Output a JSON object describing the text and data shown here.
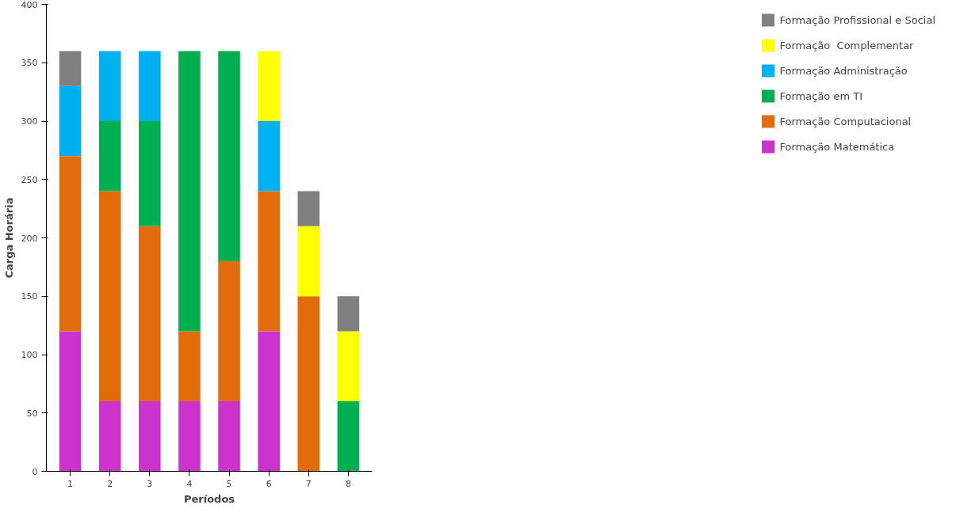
{
  "chart_data": {
    "type": "bar",
    "stacked": true,
    "xlabel": "Períodos",
    "ylabel": "Carga Horária",
    "categories": [
      "1",
      "2",
      "3",
      "4",
      "5",
      "6",
      "7",
      "8"
    ],
    "series": [
      {
        "name": "Formação Matemática",
        "color": "#cc33cc",
        "values": [
          120,
          60,
          60,
          60,
          60,
          120,
          0,
          0
        ]
      },
      {
        "name": "Formação Computacional",
        "color": "#e36c0a",
        "values": [
          150,
          180,
          150,
          60,
          120,
          120,
          150,
          0
        ]
      },
      {
        "name": "Formação em TI",
        "color": "#00b050",
        "values": [
          0,
          60,
          90,
          240,
          180,
          0,
          0,
          60
        ]
      },
      {
        "name": "Formação Administração",
        "color": "#00b0f0",
        "values": [
          60,
          60,
          60,
          0,
          0,
          60,
          0,
          0
        ]
      },
      {
        "name": "Formação  Complementar",
        "color": "#ffff00",
        "values": [
          0,
          0,
          0,
          0,
          0,
          60,
          60,
          60
        ]
      },
      {
        "name": "Formação Profissional e Social",
        "color": "#808080",
        "values": [
          30,
          0,
          0,
          0,
          0,
          0,
          30,
          30
        ]
      }
    ],
    "ylim": [
      0,
      400
    ],
    "yticks": [
      0,
      50,
      100,
      150,
      200,
      250,
      300,
      350,
      400
    ],
    "grid": false,
    "legend": "right"
  }
}
